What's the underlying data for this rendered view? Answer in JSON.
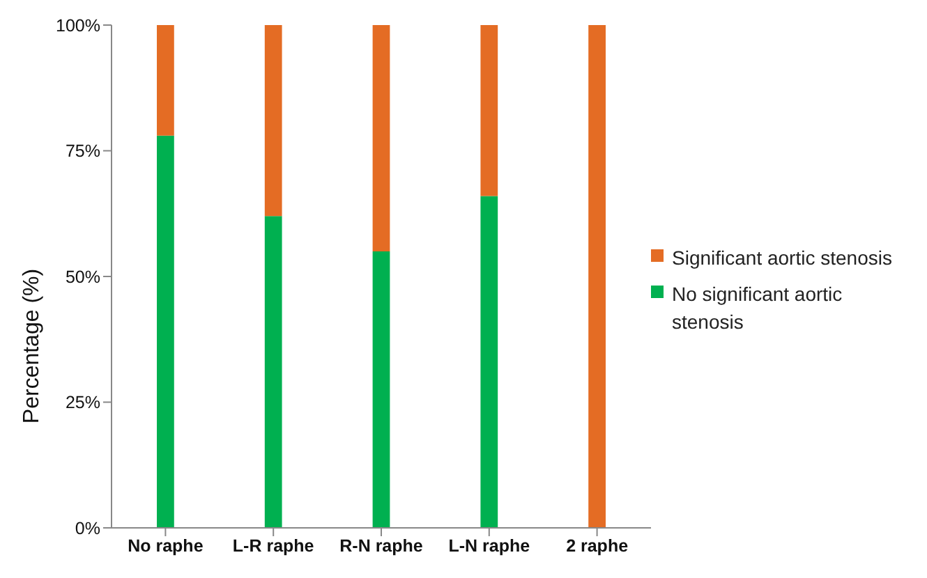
{
  "chart_data": {
    "type": "bar",
    "stacked": true,
    "ylabel": "Percentage (%)",
    "categories": [
      "No raphe",
      "L-R raphe",
      "R-N raphe",
      "L-N raphe",
      "2 raphe"
    ],
    "series": [
      {
        "name": "No significant aortic stenosis",
        "color": "#00b050",
        "values": [
          78,
          62,
          55,
          66,
          0
        ]
      },
      {
        "name": "Significant aortic stenosis",
        "color": "#e46c24",
        "values": [
          22,
          38,
          45,
          34,
          100
        ]
      }
    ],
    "ylim": [
      0,
      100
    ],
    "yticks": [
      {
        "value": 0,
        "label": "0%"
      },
      {
        "value": 25,
        "label": "25%"
      },
      {
        "value": 50,
        "label": "50%"
      },
      {
        "value": 75,
        "label": "75%"
      },
      {
        "value": 100,
        "label": "100%"
      }
    ],
    "grid": false,
    "legend": "right"
  }
}
